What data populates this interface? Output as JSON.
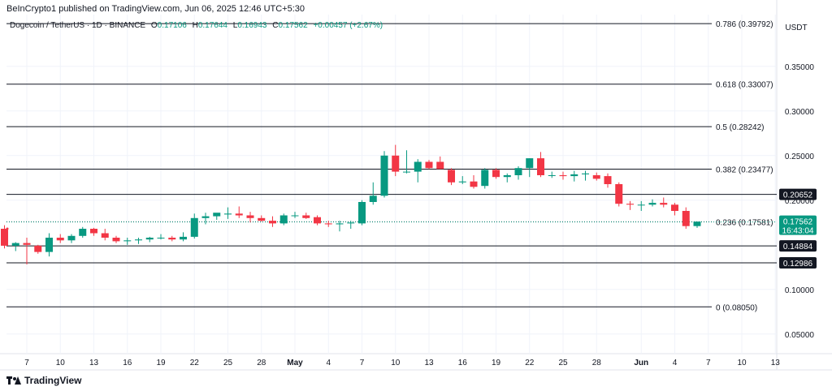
{
  "header": {
    "publisher": "BeInCrypto1 published on TradingView.com, Jun 06, 2025 12:46 UTC+5:30",
    "symbol": "Dogecoin / TetherUS · 1D · BINANCE",
    "o_label": "O",
    "o_value": "0.17106",
    "h_label": "H",
    "h_value": "0.17644",
    "l_label": "L",
    "l_value": "0.16943",
    "c_label": "C",
    "c_value": "0.17562",
    "change": "+0.00457 (+2.67%)"
  },
  "footer": {
    "brand": "TradingView"
  },
  "colors": {
    "up": "#089981",
    "down": "#f23645",
    "text": "#131722",
    "grid": "#f0f3fa",
    "fib": "#131722"
  },
  "chart_data": {
    "type": "candlestick",
    "title": "Dogecoin / TetherUS · 1D · BINANCE",
    "currency": "USDT",
    "y_ticks": [
      "0.35000",
      "0.30000",
      "0.25000",
      "0.20000",
      "0.10000",
      "0.05000"
    ],
    "ylim": [
      0.028,
      0.408
    ],
    "x_ticks": [
      {
        "label": "7",
        "day": 6
      },
      {
        "label": "10",
        "day": 9
      },
      {
        "label": "13",
        "day": 12
      },
      {
        "label": "16",
        "day": 15
      },
      {
        "label": "19",
        "day": 18
      },
      {
        "label": "22",
        "day": 21
      },
      {
        "label": "25",
        "day": 24
      },
      {
        "label": "28",
        "day": 27
      },
      {
        "label": "May",
        "day": 30
      },
      {
        "label": "4",
        "day": 33
      },
      {
        "label": "7",
        "day": 36
      },
      {
        "label": "10",
        "day": 39
      },
      {
        "label": "13",
        "day": 42
      },
      {
        "label": "16",
        "day": 45
      },
      {
        "label": "19",
        "day": 48
      },
      {
        "label": "22",
        "day": 51
      },
      {
        "label": "25",
        "day": 54
      },
      {
        "label": "28",
        "day": 57
      },
      {
        "label": "Jun",
        "day": 61
      },
      {
        "label": "4",
        "day": 64
      },
      {
        "label": "7",
        "day": 67
      },
      {
        "label": "10",
        "day": 70
      },
      {
        "label": "13",
        "day": 73
      }
    ],
    "fib_levels": [
      {
        "label": "0.786 (0.39792)",
        "value": 0.39792
      },
      {
        "label": "0.618 (0.33007)",
        "value": 0.33007
      },
      {
        "label": "0.5 (0.28242)",
        "value": 0.28242
      },
      {
        "label": "0.382 (0.23477)",
        "value": 0.23477
      },
      {
        "label": "0.236 (0.17581)",
        "value": 0.17581
      },
      {
        "label": "0 (0.08050)",
        "value": 0.0805
      }
    ],
    "horizontal_levels": [
      {
        "label": "0.20652",
        "value": 0.20652
      },
      {
        "label": "0.14884",
        "value": 0.14884
      },
      {
        "label": "0.12986",
        "value": 0.12986
      }
    ],
    "last_price": {
      "label": "0.17562",
      "value": 0.17562,
      "countdown": "16:43:04"
    },
    "candles": [
      {
        "day": 4,
        "o": 0.168,
        "h": 0.172,
        "l": 0.146,
        "c": 0.149
      },
      {
        "day": 5,
        "o": 0.149,
        "h": 0.153,
        "l": 0.143,
        "c": 0.152
      },
      {
        "day": 6,
        "o": 0.152,
        "h": 0.158,
        "l": 0.128,
        "c": 0.15
      },
      {
        "day": 7,
        "o": 0.149,
        "h": 0.15,
        "l": 0.14,
        "c": 0.142
      },
      {
        "day": 8,
        "o": 0.142,
        "h": 0.163,
        "l": 0.137,
        "c": 0.158
      },
      {
        "day": 9,
        "o": 0.158,
        "h": 0.162,
        "l": 0.152,
        "c": 0.155
      },
      {
        "day": 10,
        "o": 0.155,
        "h": 0.162,
        "l": 0.152,
        "c": 0.16
      },
      {
        "day": 11,
        "o": 0.16,
        "h": 0.17,
        "l": 0.158,
        "c": 0.168
      },
      {
        "day": 12,
        "o": 0.168,
        "h": 0.169,
        "l": 0.16,
        "c": 0.163
      },
      {
        "day": 13,
        "o": 0.163,
        "h": 0.168,
        "l": 0.155,
        "c": 0.158
      },
      {
        "day": 14,
        "o": 0.158,
        "h": 0.16,
        "l": 0.152,
        "c": 0.154
      },
      {
        "day": 15,
        "o": 0.154,
        "h": 0.158,
        "l": 0.15,
        "c": 0.155
      },
      {
        "day": 16,
        "o": 0.155,
        "h": 0.158,
        "l": 0.151,
        "c": 0.156
      },
      {
        "day": 17,
        "o": 0.156,
        "h": 0.159,
        "l": 0.153,
        "c": 0.158
      },
      {
        "day": 18,
        "o": 0.158,
        "h": 0.162,
        "l": 0.156,
        "c": 0.158
      },
      {
        "day": 19,
        "o": 0.158,
        "h": 0.16,
        "l": 0.154,
        "c": 0.156
      },
      {
        "day": 20,
        "o": 0.156,
        "h": 0.164,
        "l": 0.154,
        "c": 0.159
      },
      {
        "day": 21,
        "o": 0.159,
        "h": 0.185,
        "l": 0.157,
        "c": 0.18
      },
      {
        "day": 22,
        "o": 0.18,
        "h": 0.186,
        "l": 0.173,
        "c": 0.182
      },
      {
        "day": 23,
        "o": 0.182,
        "h": 0.185,
        "l": 0.178,
        "c": 0.186
      },
      {
        "day": 24,
        "o": 0.184,
        "h": 0.192,
        "l": 0.179,
        "c": 0.185
      },
      {
        "day": 25,
        "o": 0.185,
        "h": 0.193,
        "l": 0.18,
        "c": 0.183
      },
      {
        "day": 26,
        "o": 0.183,
        "h": 0.187,
        "l": 0.175,
        "c": 0.18
      },
      {
        "day": 27,
        "o": 0.18,
        "h": 0.183,
        "l": 0.176,
        "c": 0.177
      },
      {
        "day": 28,
        "o": 0.177,
        "h": 0.182,
        "l": 0.17,
        "c": 0.174
      },
      {
        "day": 29,
        "o": 0.174,
        "h": 0.185,
        "l": 0.172,
        "c": 0.183
      },
      {
        "day": 30,
        "o": 0.183,
        "h": 0.187,
        "l": 0.18,
        "c": 0.183
      },
      {
        "day": 31,
        "o": 0.183,
        "h": 0.186,
        "l": 0.179,
        "c": 0.18
      },
      {
        "day": 32,
        "o": 0.181,
        "h": 0.183,
        "l": 0.172,
        "c": 0.174
      },
      {
        "day": 33,
        "o": 0.174,
        "h": 0.177,
        "l": 0.17,
        "c": 0.173
      },
      {
        "day": 34,
        "o": 0.173,
        "h": 0.177,
        "l": 0.165,
        "c": 0.174
      },
      {
        "day": 35,
        "o": 0.174,
        "h": 0.177,
        "l": 0.168,
        "c": 0.175
      },
      {
        "day": 36,
        "o": 0.174,
        "h": 0.2,
        "l": 0.172,
        "c": 0.198
      },
      {
        "day": 37,
        "o": 0.198,
        "h": 0.22,
        "l": 0.195,
        "c": 0.205
      },
      {
        "day": 38,
        "o": 0.205,
        "h": 0.255,
        "l": 0.203,
        "c": 0.25
      },
      {
        "day": 39,
        "o": 0.25,
        "h": 0.262,
        "l": 0.227,
        "c": 0.232
      },
      {
        "day": 40,
        "o": 0.232,
        "h": 0.256,
        "l": 0.23,
        "c": 0.232
      },
      {
        "day": 41,
        "o": 0.232,
        "h": 0.246,
        "l": 0.22,
        "c": 0.243
      },
      {
        "day": 42,
        "o": 0.243,
        "h": 0.245,
        "l": 0.235,
        "c": 0.236
      },
      {
        "day": 43,
        "o": 0.243,
        "h": 0.249,
        "l": 0.235,
        "c": 0.235
      },
      {
        "day": 44,
        "o": 0.234,
        "h": 0.236,
        "l": 0.217,
        "c": 0.22
      },
      {
        "day": 45,
        "o": 0.22,
        "h": 0.227,
        "l": 0.218,
        "c": 0.221
      },
      {
        "day": 46,
        "o": 0.221,
        "h": 0.228,
        "l": 0.213,
        "c": 0.215
      },
      {
        "day": 47,
        "o": 0.216,
        "h": 0.236,
        "l": 0.213,
        "c": 0.234
      },
      {
        "day": 48,
        "o": 0.234,
        "h": 0.236,
        "l": 0.224,
        "c": 0.226
      },
      {
        "day": 49,
        "o": 0.226,
        "h": 0.23,
        "l": 0.22,
        "c": 0.228
      },
      {
        "day": 50,
        "o": 0.228,
        "h": 0.238,
        "l": 0.223,
        "c": 0.236
      },
      {
        "day": 51,
        "o": 0.236,
        "h": 0.247,
        "l": 0.226,
        "c": 0.247
      },
      {
        "day": 52,
        "o": 0.247,
        "h": 0.254,
        "l": 0.226,
        "c": 0.228
      },
      {
        "day": 53,
        "o": 0.228,
        "h": 0.232,
        "l": 0.225,
        "c": 0.228
      },
      {
        "day": 54,
        "o": 0.228,
        "h": 0.232,
        "l": 0.223,
        "c": 0.227
      },
      {
        "day": 55,
        "o": 0.227,
        "h": 0.233,
        "l": 0.221,
        "c": 0.229
      },
      {
        "day": 56,
        "o": 0.229,
        "h": 0.233,
        "l": 0.222,
        "c": 0.23
      },
      {
        "day": 57,
        "o": 0.228,
        "h": 0.231,
        "l": 0.222,
        "c": 0.224
      },
      {
        "day": 58,
        "o": 0.227,
        "h": 0.23,
        "l": 0.214,
        "c": 0.218
      },
      {
        "day": 59,
        "o": 0.218,
        "h": 0.22,
        "l": 0.193,
        "c": 0.196
      },
      {
        "day": 60,
        "o": 0.196,
        "h": 0.199,
        "l": 0.189,
        "c": 0.195
      },
      {
        "day": 61,
        "o": 0.195,
        "h": 0.199,
        "l": 0.188,
        "c": 0.195
      },
      {
        "day": 62,
        "o": 0.195,
        "h": 0.201,
        "l": 0.193,
        "c": 0.197
      },
      {
        "day": 63,
        "o": 0.197,
        "h": 0.203,
        "l": 0.192,
        "c": 0.195
      },
      {
        "day": 64,
        "o": 0.195,
        "h": 0.197,
        "l": 0.183,
        "c": 0.188
      },
      {
        "day": 65,
        "o": 0.188,
        "h": 0.192,
        "l": 0.168,
        "c": 0.171
      },
      {
        "day": 66,
        "o": 0.171,
        "h": 0.176,
        "l": 0.169,
        "c": 0.176
      }
    ]
  }
}
